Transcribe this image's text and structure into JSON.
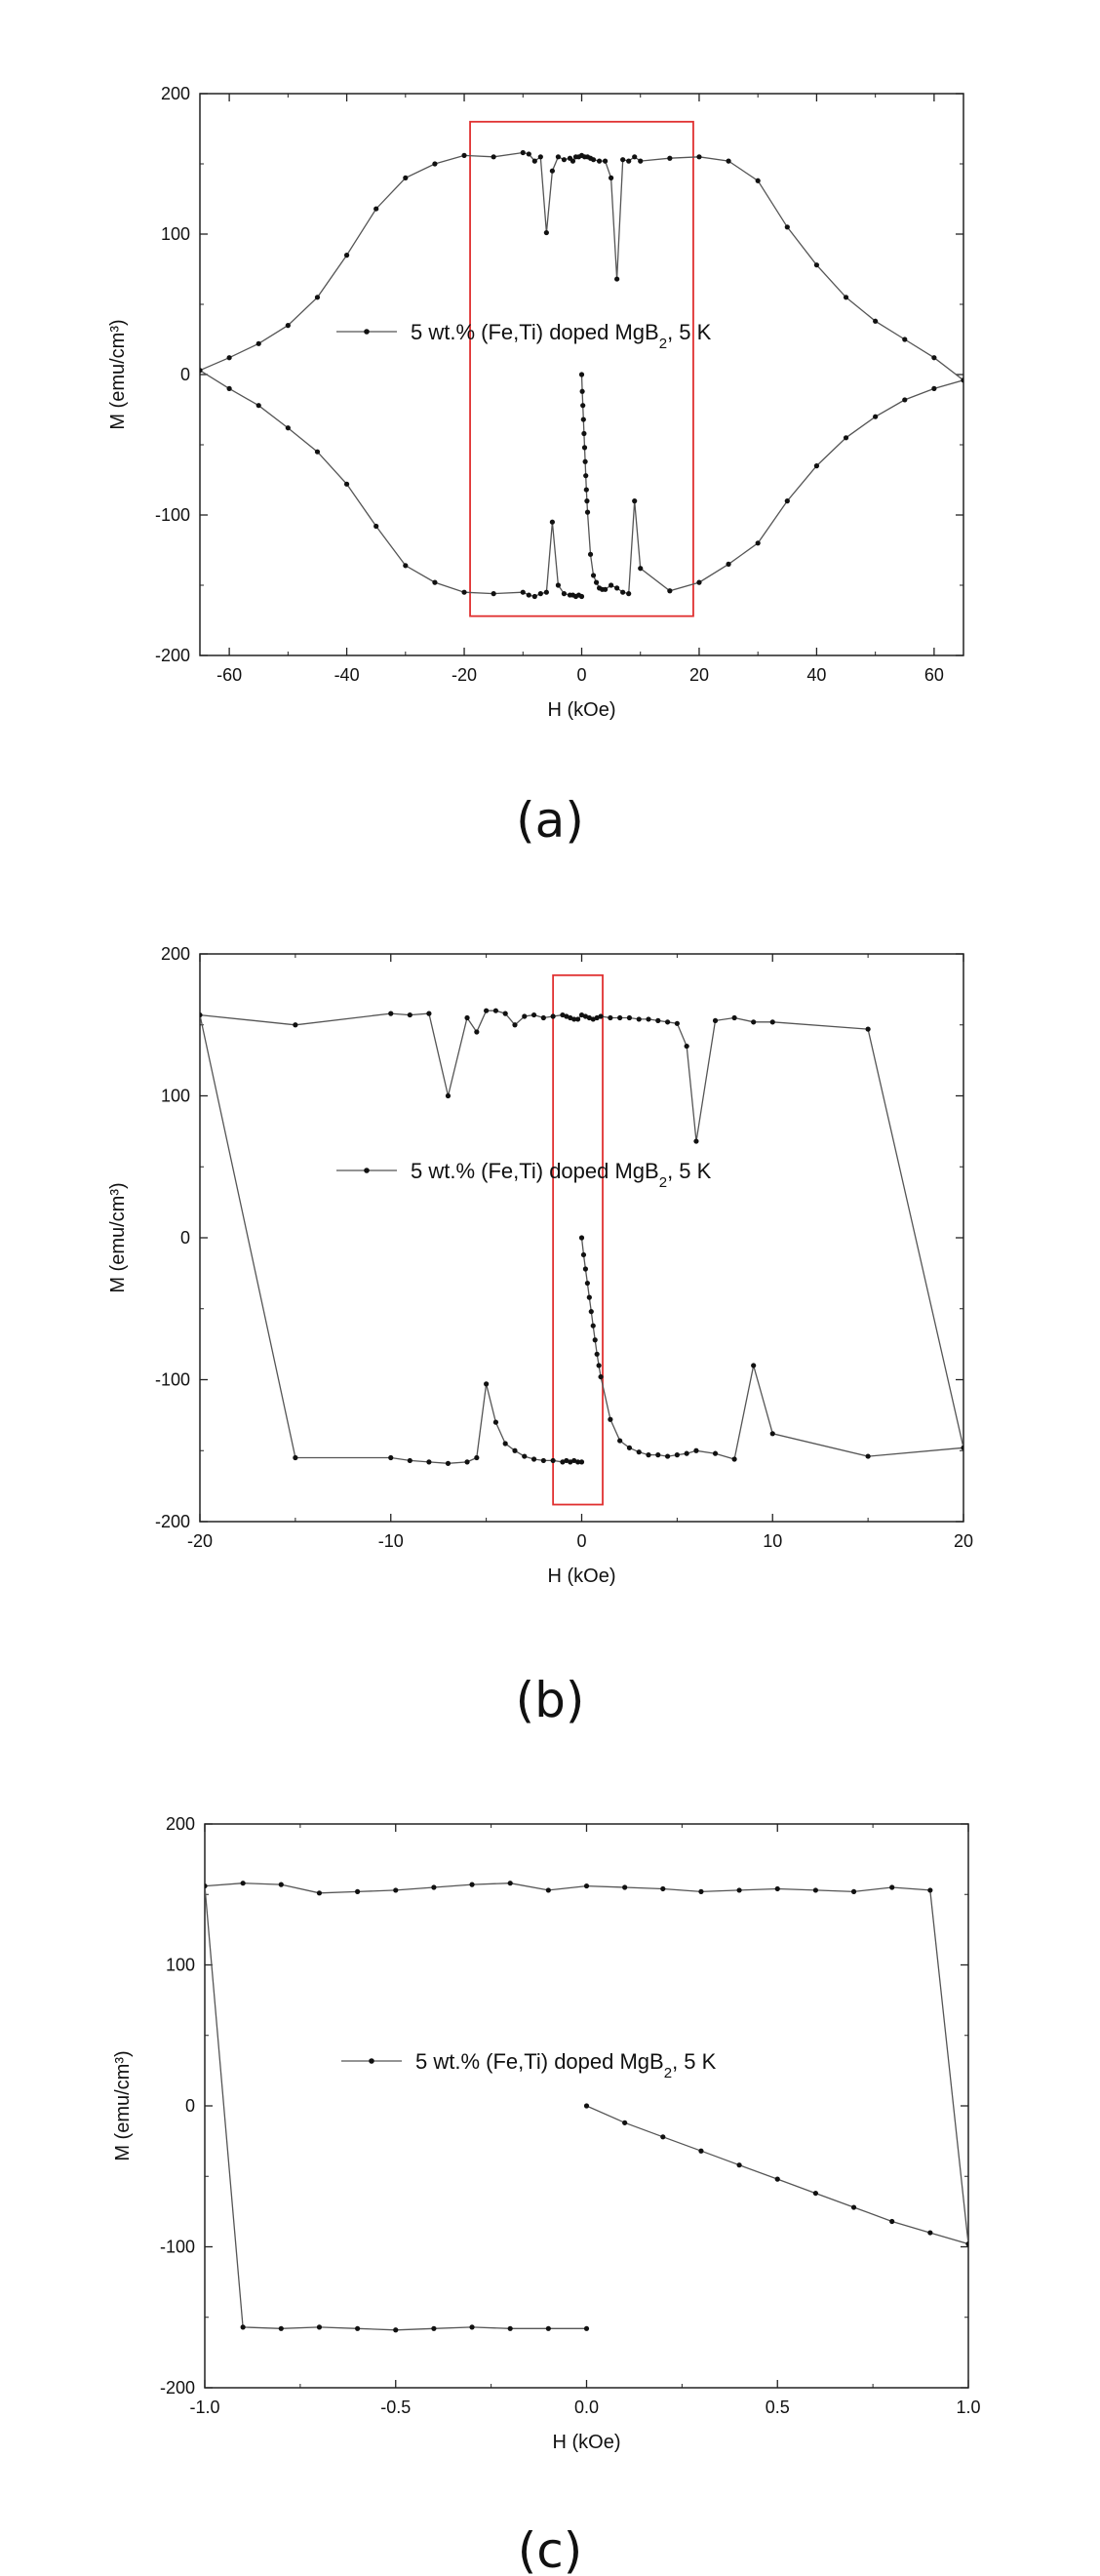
{
  "panels": [
    {
      "label": "(a)"
    },
    {
      "label": "(b)"
    },
    {
      "label": "(c)"
    }
  ],
  "chart_data": [
    {
      "type": "line",
      "xlabel": "H (kOe)",
      "ylabel": "M (emu/cm³)",
      "xlim": [
        -65,
        65
      ],
      "ylim": [
        -200,
        200
      ],
      "xticks": [
        -60,
        -40,
        -20,
        0,
        20,
        40,
        60
      ],
      "yticks": [
        -200,
        -100,
        0,
        100,
        200
      ],
      "grid": false,
      "legend_position": "center",
      "highlight_box": {
        "x": [
          -19,
          19
        ],
        "y": [
          -172,
          180
        ],
        "color": "#e03030"
      },
      "series": [
        {
          "name": "5 wt.% (Fe,Ti) doped MgB2, 5 K",
          "color": "#555555",
          "x": [
            0,
            0.1,
            0.2,
            0.3,
            0.4,
            0.5,
            0.6,
            0.7,
            0.8,
            0.9,
            1,
            1.5,
            2,
            2.5,
            3,
            3.5,
            4,
            5,
            6,
            7,
            8,
            9,
            10,
            15,
            20,
            25,
            30,
            35,
            40,
            45,
            50,
            55,
            60,
            65,
            60,
            55,
            50,
            45,
            40,
            35,
            30,
            25,
            20,
            15,
            10,
            9,
            8,
            7,
            6,
            5,
            4,
            3,
            2,
            1.5,
            1,
            0.5,
            0,
            -0.5,
            -1,
            -1.5,
            -2,
            -3,
            -4,
            -5,
            -6,
            -7,
            -8,
            -9,
            -10,
            -15,
            -20,
            -25,
            -30,
            -35,
            -40,
            -45,
            -50,
            -55,
            -60,
            -65,
            -60,
            -55,
            -50,
            -45,
            -40,
            -35,
            -30,
            -25,
            -20,
            -15,
            -10,
            -9,
            -8,
            -7,
            -6,
            -5,
            -4,
            -3,
            -2,
            -1.5,
            -1,
            -0.5,
            0
          ],
          "y": [
            0,
            -12,
            -22,
            -32,
            -42,
            -52,
            -62,
            -72,
            -82,
            -90,
            -98,
            -128,
            -143,
            -148,
            -152,
            -153,
            -153,
            -150,
            -152,
            -155,
            -156,
            -90,
            -138,
            -154,
            -148,
            -135,
            -120,
            -90,
            -65,
            -45,
            -30,
            -18,
            -10,
            -4,
            12,
            25,
            38,
            55,
            78,
            105,
            138,
            152,
            155,
            154,
            152,
            155,
            152,
            153,
            68,
            140,
            152,
            152,
            153,
            154,
            155,
            155,
            156,
            155,
            155,
            152,
            154,
            153,
            155,
            145,
            101,
            155,
            152,
            157,
            158,
            155,
            156,
            150,
            140,
            118,
            85,
            55,
            35,
            22,
            12,
            3,
            -10,
            -22,
            -38,
            -55,
            -78,
            -108,
            -136,
            -148,
            -155,
            -156,
            -155,
            -157,
            -158,
            -156,
            -155,
            -105,
            -150,
            -156,
            -157,
            -157,
            -158,
            -157,
            -158
          ]
        }
      ]
    },
    {
      "type": "line",
      "xlabel": "H (kOe)",
      "ylabel": "M (emu/cm³)",
      "xlim": [
        -20,
        20
      ],
      "ylim": [
        -200,
        200
      ],
      "xticks": [
        -20,
        -10,
        0,
        10,
        20
      ],
      "yticks": [
        -200,
        -100,
        0,
        100,
        200
      ],
      "grid": false,
      "legend_position": "center",
      "highlight_box": {
        "x": [
          -1.5,
          1.1
        ],
        "y": [
          -188,
          185
        ],
        "color": "#e03030"
      },
      "series": [
        {
          "name": "5 wt.% (Fe,Ti) doped MgB2, 5 K",
          "color": "#555555",
          "x": [
            0,
            0.1,
            0.2,
            0.3,
            0.4,
            0.5,
            0.6,
            0.7,
            0.8,
            0.9,
            1,
            1.5,
            2,
            2.5,
            3,
            3.5,
            4,
            4.5,
            5,
            5.5,
            6,
            7,
            8,
            9,
            10,
            15,
            20,
            15,
            10,
            9,
            8,
            7,
            6,
            5.5,
            5,
            4.5,
            4,
            3.5,
            3,
            2.5,
            2,
            1.5,
            1,
            0.8,
            0.6,
            0.4,
            0.2,
            0,
            -0.2,
            -0.4,
            -0.6,
            -0.8,
            -1,
            -1.5,
            -2,
            -2.5,
            -3,
            -3.5,
            -4,
            -4.5,
            -5,
            -5.5,
            -6,
            -7,
            -8,
            -9,
            -10,
            -15,
            -20,
            -15,
            -10,
            -9,
            -8,
            -7,
            -6,
            -5.5,
            -5,
            -4.5,
            -4,
            -3.5,
            -3,
            -2.5,
            -2,
            -1.5,
            -1,
            -0.8,
            -0.6,
            -0.4,
            -0.2,
            0
          ],
          "y": [
            0,
            -12,
            -22,
            -32,
            -42,
            -52,
            -62,
            -72,
            -82,
            -90,
            -98,
            -128,
            -143,
            -148,
            -151,
            -153,
            -153,
            -154,
            -153,
            -152,
            -150,
            -152,
            -156,
            -90,
            -138,
            -154,
            -148,
            147,
            152,
            152,
            155,
            153,
            68,
            135,
            151,
            152,
            153,
            154,
            154,
            155,
            155,
            155,
            156,
            155,
            154,
            155,
            156,
            157,
            154,
            154,
            155,
            156,
            157,
            156,
            155,
            157,
            156,
            150,
            158,
            160,
            160,
            145,
            155,
            100,
            158,
            157,
            158,
            150,
            157,
            -155,
            -155,
            -157,
            -158,
            -159,
            -158,
            -155,
            -103,
            -130,
            -145,
            -150,
            -154,
            -156,
            -157,
            -157,
            -158,
            -157,
            -158,
            -157,
            -158,
            -158
          ]
        }
      ]
    },
    {
      "type": "line",
      "xlabel": "H (kOe)",
      "ylabel": "M (emu/cm³)",
      "xlim": [
        -1.0,
        1.0
      ],
      "ylim": [
        -200,
        200
      ],
      "xticks": [
        -1.0,
        -0.5,
        0.0,
        0.5,
        1.0
      ],
      "yticks": [
        -200,
        -100,
        0,
        100,
        200
      ],
      "grid": false,
      "legend_position": "center",
      "series": [
        {
          "name": "5 wt.% (Fe,Ti) doped MgB2, 5 K",
          "color": "#555555",
          "x": [
            0,
            0.1,
            0.2,
            0.3,
            0.4,
            0.5,
            0.6,
            0.7,
            0.8,
            0.9,
            1.0,
            0.9,
            0.8,
            0.7,
            0.6,
            0.5,
            0.4,
            0.3,
            0.2,
            0.1,
            0,
            -0.1,
            -0.2,
            -0.3,
            -0.4,
            -0.5,
            -0.6,
            -0.7,
            -0.8,
            -0.9,
            -1.0,
            -0.9,
            -0.8,
            -0.7,
            -0.6,
            -0.5,
            -0.4,
            -0.3,
            -0.2,
            -0.1,
            0
          ],
          "y": [
            0,
            -12,
            -22,
            -32,
            -42,
            -52,
            -62,
            -72,
            -82,
            -90,
            -98,
            153,
            155,
            152,
            153,
            154,
            153,
            152,
            154,
            155,
            156,
            153,
            158,
            157,
            155,
            153,
            152,
            151,
            157,
            158,
            156,
            -157,
            -158,
            -157,
            -158,
            -159,
            -158,
            -157,
            -158,
            -158,
            -158
          ]
        }
      ]
    }
  ]
}
